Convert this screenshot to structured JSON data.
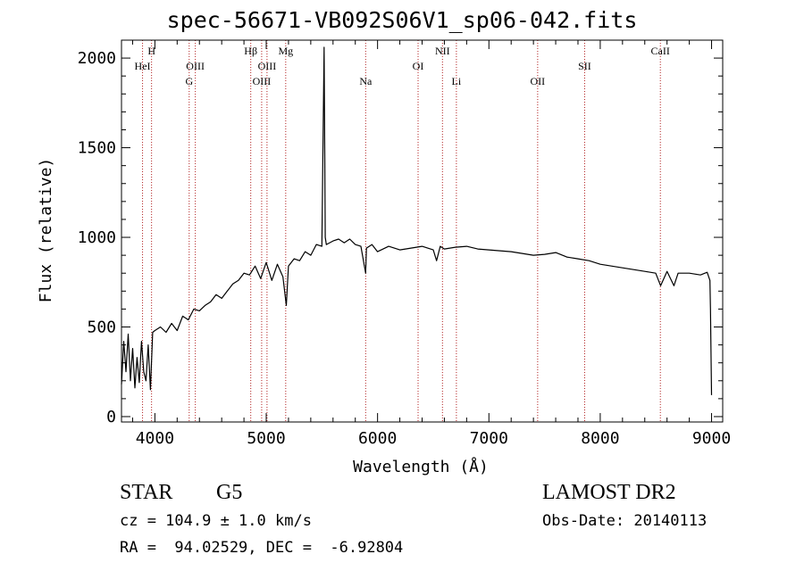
{
  "chart_data": {
    "type": "line",
    "title": "spec-56671-VB092S06V1_sp06-042.fits",
    "xlabel": "Wavelength (Å)",
    "ylabel": "Flux (relative)",
    "xlim": [
      3700,
      9100
    ],
    "ylim": [
      -30,
      2100
    ],
    "xticks": [
      4000,
      5000,
      6000,
      7000,
      8000,
      9000
    ],
    "yticks": [
      0,
      500,
      1000,
      1500,
      2000
    ],
    "grid": false,
    "series": [
      {
        "x": [
          3700,
          3720,
          3740,
          3760,
          3780,
          3800,
          3820,
          3840,
          3860,
          3880,
          3900,
          3920,
          3940,
          3960,
          3980,
          4000,
          4050,
          4100,
          4150,
          4200,
          4250,
          4300,
          4350,
          4400,
          4450,
          4500,
          4550,
          4600,
          4650,
          4700,
          4750,
          4800,
          4850,
          4900,
          4950,
          5000,
          5050,
          5100,
          5150,
          5180,
          5200,
          5250,
          5300,
          5350,
          5400,
          5450,
          5500,
          5520,
          5530,
          5540,
          5600,
          5650,
          5700,
          5750,
          5800,
          5850,
          5893,
          5900,
          5950,
          6000,
          6100,
          6200,
          6300,
          6400,
          6500,
          6530,
          6563,
          6600,
          6700,
          6800,
          6900,
          7000,
          7100,
          7200,
          7300,
          7400,
          7500,
          7600,
          7700,
          7800,
          7900,
          8000,
          8100,
          8200,
          8300,
          8400,
          8498,
          8542,
          8600,
          8662,
          8700,
          8800,
          8900,
          8960,
          8985,
          8990,
          9000
        ],
        "y": [
          180,
          420,
          250,
          460,
          200,
          380,
          160,
          330,
          190,
          420,
          250,
          200,
          400,
          150,
          470,
          480,
          500,
          470,
          520,
          480,
          560,
          540,
          600,
          590,
          620,
          640,
          680,
          660,
          700,
          740,
          760,
          800,
          790,
          840,
          770,
          860,
          760,
          850,
          780,
          620,
          840,
          880,
          870,
          920,
          900,
          960,
          950,
          2060,
          1000,
          960,
          980,
          990,
          970,
          990,
          960,
          950,
          800,
          940,
          960,
          920,
          950,
          930,
          940,
          950,
          930,
          870,
          950,
          935,
          945,
          950,
          935,
          930,
          925,
          920,
          910,
          900,
          905,
          915,
          890,
          880,
          870,
          850,
          840,
          830,
          820,
          810,
          800,
          730,
          810,
          730,
          800,
          800,
          790,
          805,
          760,
          600,
          120
        ]
      }
    ],
    "lines": [
      {
        "name": "HeI",
        "x": 3889,
        "row": 2
      },
      {
        "name": "H",
        "x": 3970,
        "row": 1
      },
      {
        "name": "OIII",
        "x": 4363,
        "row": 2
      },
      {
        "name": "G",
        "x": 4308,
        "row": 3
      },
      {
        "name": "Hβ",
        "x": 4861,
        "row": 1
      },
      {
        "name": "OIII",
        "x": 4959,
        "row": 3
      },
      {
        "name": "OIII",
        "x": 5007,
        "row": 2
      },
      {
        "name": "Mg",
        "x": 5175,
        "row": 1
      },
      {
        "name": "Na",
        "x": 5893,
        "row": 3
      },
      {
        "name": "OI",
        "x": 6364,
        "row": 2
      },
      {
        "name": "NII",
        "x": 6583,
        "row": 1
      },
      {
        "name": "Li",
        "x": 6708,
        "row": 3
      },
      {
        "name": "OII",
        "x": 7438,
        "row": 3
      },
      {
        "name": "SII",
        "x": 7860,
        "row": 2
      },
      {
        "name": "CaII",
        "x": 8540,
        "row": 1
      }
    ]
  },
  "info": {
    "object_class": "STAR",
    "subclass": "G5",
    "survey": "LAMOST DR2",
    "cz": "cz = 104.9 ± 1.0 km/s",
    "obs_date": "Obs-Date: 20140113",
    "coords": "RA =  94.02529, DEC =  -6.92804"
  },
  "colors": {
    "axis": "#000000",
    "line_marker": "#b22222",
    "spectrum": "#000000"
  }
}
